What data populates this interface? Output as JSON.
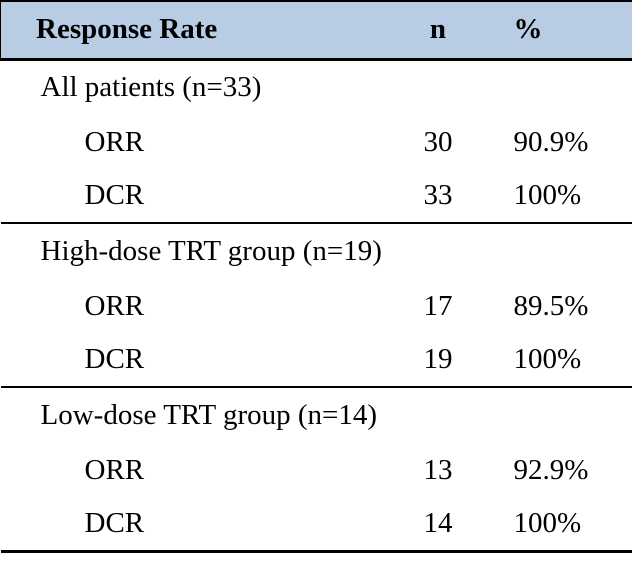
{
  "table": {
    "title": "Response Rate table",
    "header": {
      "label": "Response Rate",
      "n": "n",
      "pct": "%"
    },
    "header_bg_color": "#b8cce4",
    "border_color": "#000000",
    "sections": [
      {
        "group": "All patients (n=33)",
        "rows": [
          {
            "label": "ORR",
            "n": "30",
            "pct": "90.9%"
          },
          {
            "label": "DCR",
            "n": "33",
            "pct": "100%"
          }
        ]
      },
      {
        "group": "High-dose TRT group (n=19)",
        "rows": [
          {
            "label": "ORR",
            "n": "17",
            "pct": "89.5%"
          },
          {
            "label": "DCR",
            "n": "19",
            "pct": "100%"
          }
        ]
      },
      {
        "group": "Low-dose TRT group (n=14)",
        "rows": [
          {
            "label": "ORR",
            "n": "13",
            "pct": "92.9%"
          },
          {
            "label": "DCR",
            "n": "14",
            "pct": "100%"
          }
        ]
      }
    ]
  },
  "chart_data": {
    "type": "table",
    "title": "Response Rate",
    "columns": [
      "Response Rate",
      "n",
      "%"
    ],
    "rows": [
      [
        "All patients (n=33)",
        "",
        ""
      ],
      [
        "ORR",
        30,
        "90.9%"
      ],
      [
        "DCR",
        33,
        "100%"
      ],
      [
        "High-dose TRT group (n=19)",
        "",
        ""
      ],
      [
        "ORR",
        17,
        "89.5%"
      ],
      [
        "DCR",
        19,
        "100%"
      ],
      [
        "Low-dose TRT group (n=14)",
        "",
        ""
      ],
      [
        "ORR",
        13,
        "92.9%"
      ],
      [
        "DCR",
        14,
        "100%"
      ]
    ]
  }
}
